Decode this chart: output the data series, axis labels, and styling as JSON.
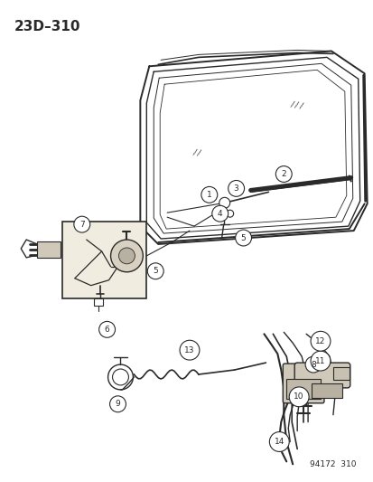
{
  "title": "23D–310",
  "footnote": "94172  310",
  "bg_color": "#ffffff",
  "line_color": "#2a2a2a"
}
